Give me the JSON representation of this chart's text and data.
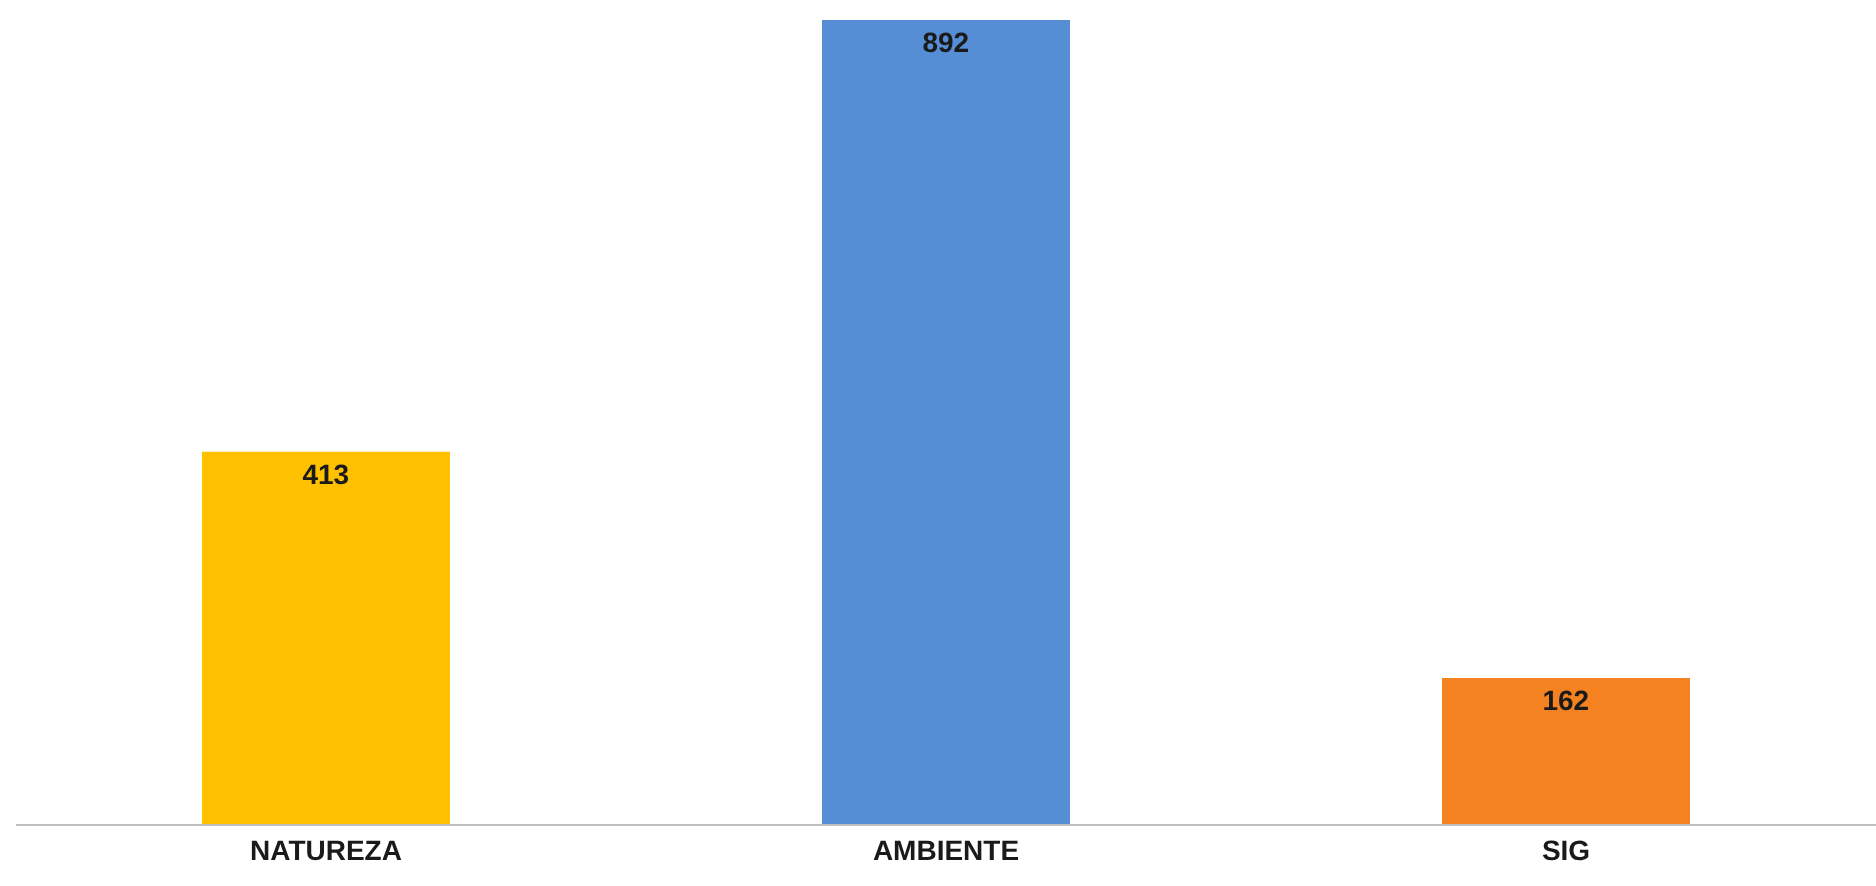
{
  "chart_data": {
    "type": "bar",
    "categories": [
      "NATUREZA",
      "AMBIENTE",
      "SIG"
    ],
    "values": [
      413,
      892,
      162
    ],
    "colors": [
      "#ffc000",
      "#558ed5",
      "#f58220"
    ],
    "data_labels": true,
    "legend": false
  }
}
